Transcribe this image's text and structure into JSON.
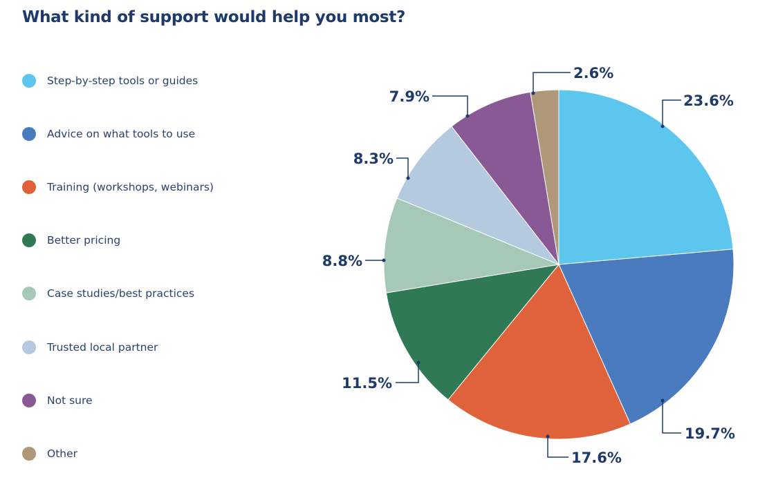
{
  "chart_data": {
    "type": "pie",
    "title": "What kind of support would help you most?",
    "legend_position": "left",
    "start": "top, clockwise",
    "slices": [
      {
        "name": "Step-by-step tools or guides",
        "value": 23.6,
        "label": "23.6%",
        "color": "#5cc6ee"
      },
      {
        "name": "Advice on what tools to use",
        "value": 19.7,
        "label": "19.7%",
        "color": "#4a7bbf"
      },
      {
        "name": "Training (workshops, webinars)",
        "value": 17.6,
        "label": "17.6%",
        "color": "#df623a"
      },
      {
        "name": "Better pricing",
        "value": 11.5,
        "label": "11.5%",
        "color": "#2f7954"
      },
      {
        "name": "Case studies/best practices",
        "value": 8.8,
        "label": "8.8%",
        "color": "#a6c9b7"
      },
      {
        "name": "Trusted local partner",
        "value": 8.3,
        "label": "8.3%",
        "color": "#b6cadf"
      },
      {
        "name": "Not sure",
        "value": 7.9,
        "label": "7.9%",
        "color": "#895996"
      },
      {
        "name": "Other",
        "value": 2.6,
        "label": "2.6%",
        "color": "#ae9877"
      }
    ]
  }
}
